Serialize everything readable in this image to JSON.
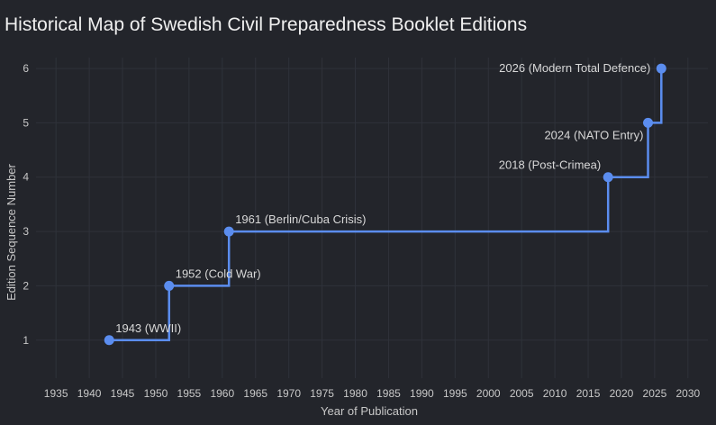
{
  "chart_data": {
    "type": "line",
    "line_shape": "step-after",
    "title": "Historical Map of Swedish Civil Preparedness Booklet Editions",
    "xlabel": "Year of Publication",
    "ylabel": "Edition Sequence Number",
    "xlim": [
      1932,
      2033
    ],
    "ylim": [
      0.3,
      6.2
    ],
    "xticks": [
      1935,
      1940,
      1945,
      1950,
      1955,
      1960,
      1965,
      1970,
      1975,
      1980,
      1985,
      1990,
      1995,
      2000,
      2005,
      2010,
      2015,
      2020,
      2025,
      2030
    ],
    "yticks": [
      1,
      2,
      3,
      4,
      5,
      6
    ],
    "grid": true,
    "series": [
      {
        "color": "#5b8def",
        "points": [
          {
            "x": 1943,
            "y": 1,
            "label": "1943 (WWII)",
            "label_pos": "top-right"
          },
          {
            "x": 1952,
            "y": 2,
            "label": "1952 (Cold War)",
            "label_pos": "top-right"
          },
          {
            "x": 1961,
            "y": 3,
            "label": "1961 (Berlin/Cuba Crisis)",
            "label_pos": "top-right"
          },
          {
            "x": 2018,
            "y": 4,
            "label": "2018 (Post-Crimea)",
            "label_pos": "top-left"
          },
          {
            "x": 2024,
            "y": 5,
            "label": "2024 (NATO Entry)",
            "label_pos": "bottom-left"
          },
          {
            "x": 2026,
            "y": 6,
            "label": "2026 (Modern Total Defence)",
            "label_pos": "left"
          }
        ]
      }
    ]
  }
}
